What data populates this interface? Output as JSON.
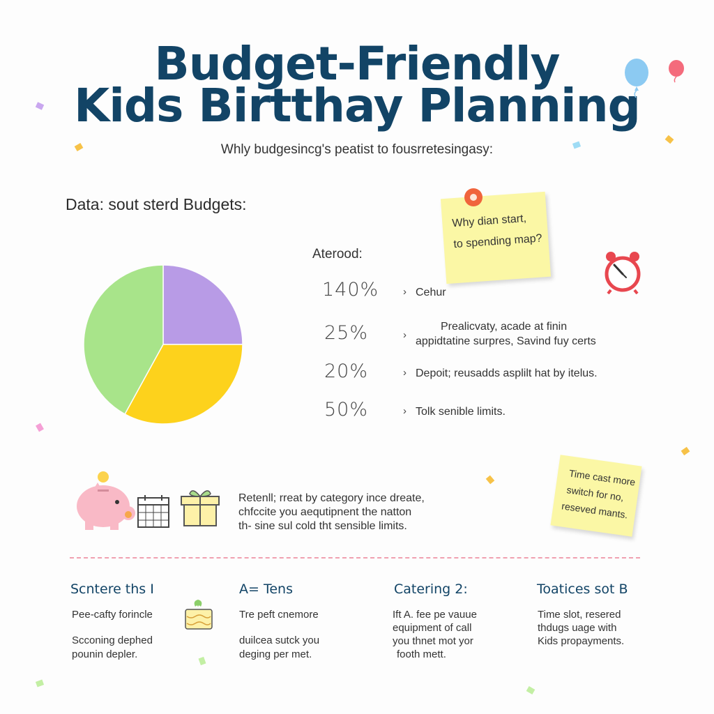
{
  "header": {
    "title_line1": "Budget-Friendly",
    "title_line2": "Kids Birtthay Planning",
    "subtitle": "Whly budgesincg's peatist to fousrretesingasy:"
  },
  "data_heading": "Data: sout sterd Budgets:",
  "legend_heading": "Aterood:",
  "colors": {
    "title": "#124466",
    "slice_green": "#a8e48a",
    "slice_purple": "#b89be6",
    "slice_yellow": "#fdd21c",
    "note": "#fbf7a5",
    "divider": "#f0a0b0"
  },
  "chart_data": {
    "type": "pie",
    "slices": [
      {
        "color": "#b89be6",
        "fraction": 0.25
      },
      {
        "color": "#fdd21c",
        "fraction": 0.33
      },
      {
        "color": "#a8e48a",
        "fraction": 0.42
      }
    ]
  },
  "legend": [
    {
      "percent": "140%",
      "text": "Cehur"
    },
    {
      "percent": "25%",
      "text_line1": "Prealicvaty, acade at finin",
      "text_line2": "appidtatine surpres, Savind fuy certs"
    },
    {
      "percent": "20%",
      "text": "Depoit; reusadds asplilt hat by itelus."
    },
    {
      "percent": "50%",
      "text": "Tolk senible limits."
    }
  ],
  "sticky_note_1": {
    "line1": "Why dian start,",
    "line2": "to spending map?"
  },
  "sticky_note_2": {
    "line1": "Time cast more",
    "line2": "switch for no,",
    "line3": "reseved mants."
  },
  "middle_text": {
    "line1": "Retenll; rreat by category ince dreate,",
    "line2": "chfccite you aequtipnent the natton",
    "line3": "th- sine sul cold tht sensible limits."
  },
  "icons": [
    "piggy-bank-icon",
    "calendar-icon",
    "gift-icon",
    "cake-icon",
    "alarm-clock-icon",
    "balloon-icon",
    "pushpin-icon"
  ],
  "columns": [
    {
      "title": "Scntere ths I",
      "p1": "Pee-cafty forincle",
      "p2_line1": "Scconing dephed",
      "p2_line2": "pounin depler."
    },
    {
      "title": "A= Tens",
      "p1": "Tre peft cnemore",
      "p2_line1": "duilcea sutck you",
      "p2_line2": "deging per met."
    },
    {
      "title": "Catering 2:",
      "p1_line1": "Ift A. fee pe vauue",
      "p1_line2": "equipment of call",
      "p1_line3": "you thnet mot yor",
      "p1_line4": "footh mett."
    },
    {
      "title": "Toatices sot B",
      "p1_line1": "Time slot, resered",
      "p1_line2": "thdugs uage  with",
      "p1_line3": "Kids propayments."
    }
  ]
}
